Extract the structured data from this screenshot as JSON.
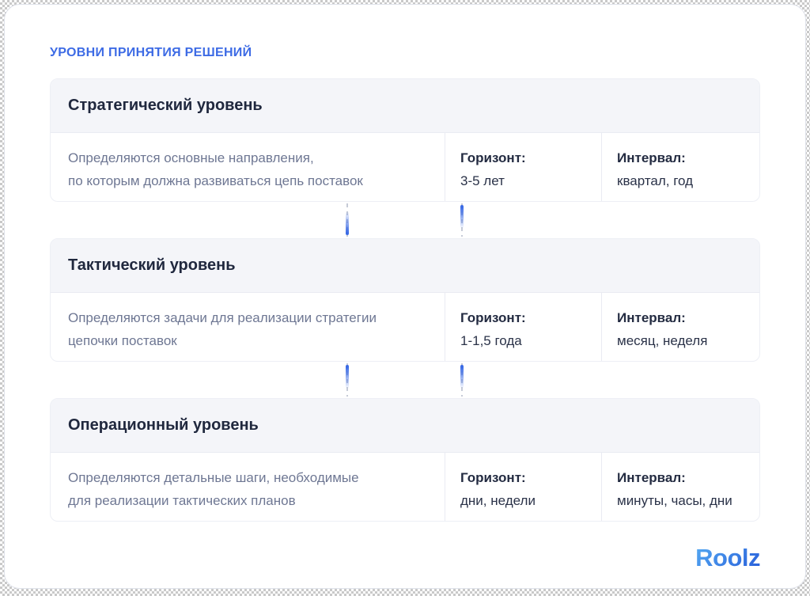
{
  "page": {
    "title": "УРОВНИ ПРИНЯТИЯ РЕШЕНИЙ"
  },
  "labels": {
    "horizon": "Горизонт:",
    "interval": "Интервал:"
  },
  "levels": [
    {
      "name": "Стратегический уровень",
      "description": "Определяются основные направления,\nпо которым должна развиваться цепь поставок",
      "horizon": "3-5 лет",
      "interval": "квартал, год"
    },
    {
      "name": "Тактический уровень",
      "description": "Определяются задачи для реализации стратегии\nцепочки поставок",
      "horizon": "1-1,5 года",
      "interval": "месяц, неделя"
    },
    {
      "name": "Операционный уровень",
      "description": "Определяются детальные шаги, необходимые\nдля реализации тактических планов",
      "horizon": "дни, недели",
      "interval": "минуты, часы, дни"
    }
  ],
  "footer": {
    "logo": "Roolz"
  },
  "colors": {
    "accent": "#3D6BE5",
    "card_header_bg": "#F4F5F9",
    "text_dark": "#20283E",
    "text_muted": "#6E7793",
    "divider": "#E9EBF2",
    "logo_gradient_start": "#55AAF2",
    "logo_gradient_end": "#2B64DC"
  }
}
